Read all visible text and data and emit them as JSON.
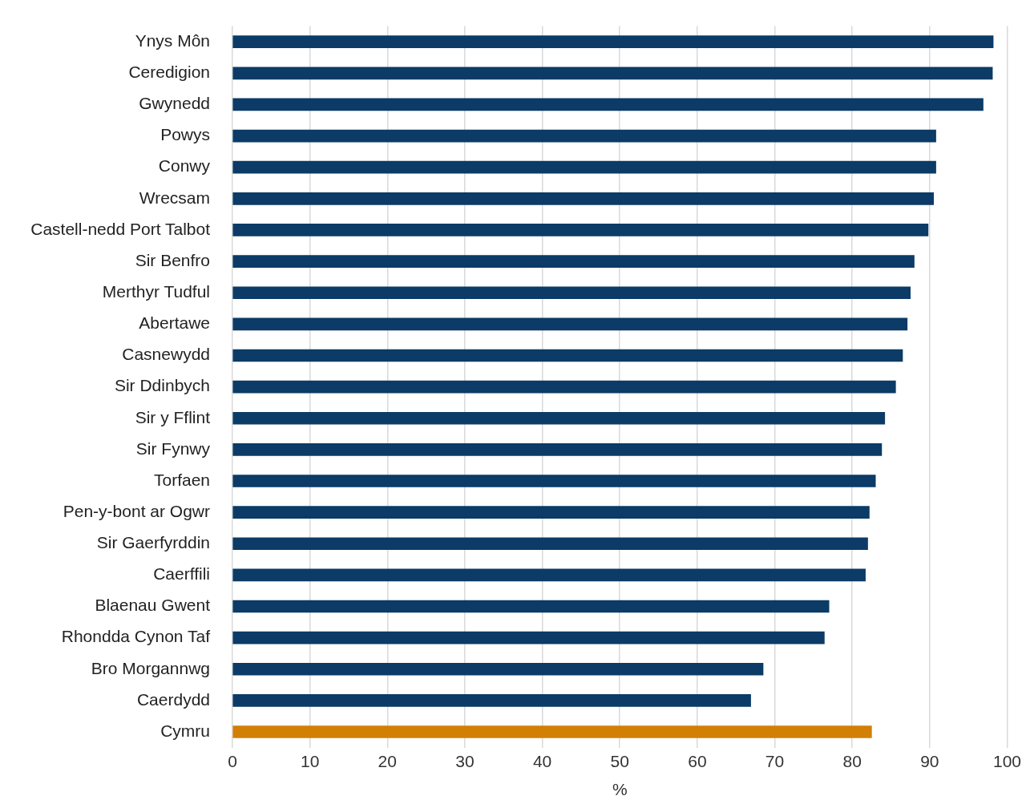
{
  "chart_data": {
    "type": "bar",
    "orientation": "horizontal",
    "xlabel": "%",
    "categories": [
      "Ynys Môn",
      "Ceredigion",
      "Gwynedd",
      "Powys",
      "Conwy",
      "Wrecsam",
      "Castell-nedd Port Talbot",
      "Sir Benfro",
      "Merthyr Tudful",
      "Abertawe",
      "Casnewydd",
      "Sir Ddinbych",
      "Sir y Fflint",
      "Sir Fynwy",
      "Torfaen",
      "Pen-y-bont ar Ogwr",
      "Sir Gaerfyrddin",
      "Caerffili",
      "Blaenau Gwent",
      "Rhondda Cynon Taf",
      "Bro Morgannwg",
      "Caerdydd",
      "Cymru"
    ],
    "values": [
      98.2,
      98.1,
      96.9,
      90.8,
      90.8,
      90.5,
      89.8,
      88.0,
      87.5,
      87.1,
      86.5,
      85.6,
      84.2,
      83.8,
      83.0,
      82.2,
      82.0,
      81.7,
      77.0,
      76.4,
      68.5,
      66.9,
      82.5
    ],
    "colors": [
      "#0b3b66",
      "#0b3b66",
      "#0b3b66",
      "#0b3b66",
      "#0b3b66",
      "#0b3b66",
      "#0b3b66",
      "#0b3b66",
      "#0b3b66",
      "#0b3b66",
      "#0b3b66",
      "#0b3b66",
      "#0b3b66",
      "#0b3b66",
      "#0b3b66",
      "#0b3b66",
      "#0b3b66",
      "#0b3b66",
      "#0b3b66",
      "#0b3b66",
      "#0b3b66",
      "#0b3b66",
      "#d27f06"
    ],
    "xlim": [
      0,
      100
    ],
    "xticks": [
      0,
      10,
      20,
      30,
      40,
      50,
      60,
      70,
      80,
      90,
      100
    ],
    "grid": "x",
    "legend": false
  }
}
